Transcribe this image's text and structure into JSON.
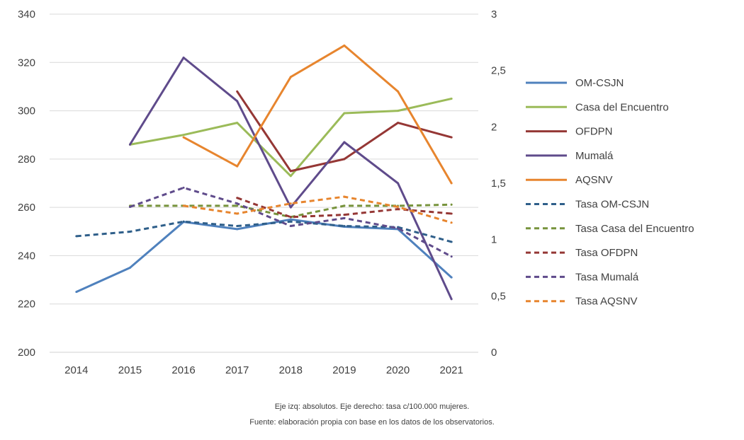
{
  "chart_data": {
    "type": "line",
    "categories": [
      "2014",
      "2015",
      "2016",
      "2017",
      "2018",
      "2019",
      "2020",
      "2021"
    ],
    "y_left": {
      "ylim": [
        200,
        340
      ],
      "ticks": [
        "200",
        "220",
        "240",
        "260",
        "280",
        "300",
        "320",
        "340"
      ]
    },
    "y_right": {
      "ylim": [
        0,
        3
      ],
      "ticks": [
        "0",
        "0,5",
        "1",
        "1,5",
        "2",
        "2,5",
        "3"
      ]
    },
    "grid": "horizontal",
    "legend_position": "right",
    "series": [
      {
        "name": "OM-CSJN",
        "axis": "left",
        "style": "solid",
        "color": "#4f81bd",
        "values": [
          225,
          235,
          254,
          251,
          255,
          252,
          251,
          231
        ]
      },
      {
        "name": " Casa del Encuentro",
        "axis": "left",
        "style": "solid",
        "color": "#9bbb59",
        "values": [
          null,
          286,
          290,
          295,
          273,
          299,
          300,
          305
        ]
      },
      {
        "name": "OFDPN",
        "axis": "left",
        "style": "solid",
        "color": "#953735",
        "values": [
          null,
          null,
          null,
          308,
          275,
          280,
          295,
          289
        ]
      },
      {
        "name": "Mumalá",
        "axis": "left",
        "style": "solid",
        "color": "#5f4b8b",
        "values": [
          null,
          286,
          322,
          304,
          260,
          287,
          270,
          222
        ]
      },
      {
        "name": "AQSNV",
        "axis": "left",
        "style": "solid",
        "color": "#e7852e",
        "values": [
          null,
          null,
          289,
          277,
          314,
          327,
          308,
          270
        ]
      },
      {
        "name": "Tasa OM-CSJN",
        "axis": "right",
        "style": "dashed",
        "color": "#2f5f8a",
        "values": [
          1.03,
          1.07,
          1.16,
          1.12,
          1.16,
          1.12,
          1.11,
          0.98
        ]
      },
      {
        "name": " Tasa Casa del Encuentro",
        "axis": "right",
        "style": "dashed",
        "color": "#77933c",
        "values": [
          null,
          1.3,
          1.3,
          1.3,
          1.2,
          1.3,
          1.3,
          1.31
        ]
      },
      {
        "name": "Tasa OFDPN",
        "axis": "right",
        "style": "dashed",
        "color": "#953735",
        "values": [
          null,
          null,
          null,
          1.37,
          1.2,
          1.22,
          1.27,
          1.23
        ]
      },
      {
        "name": "Tasa Mumalá",
        "axis": "right",
        "style": "dashed",
        "color": "#5f4b8b",
        "values": [
          null,
          1.29,
          1.46,
          1.32,
          1.12,
          1.19,
          1.1,
          0.85
        ]
      },
      {
        "name": "Tasa AQSNV",
        "axis": "right",
        "style": "dashed",
        "color": "#e7852e",
        "values": [
          null,
          null,
          1.3,
          1.23,
          1.32,
          1.38,
          1.29,
          1.15
        ]
      }
    ]
  },
  "notes": [
    "Eje izq: absolutos. Eje derecho: tasa c/100.000 mujeres.",
    "Fuente: elaboración propia con base en los datos de los observatorios."
  ]
}
